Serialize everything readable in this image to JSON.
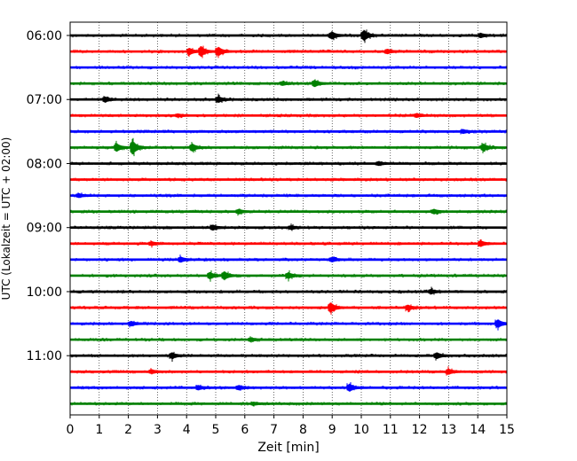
{
  "chart_data": {
    "type": "line",
    "title": "",
    "xlabel": "Zeit  [min]",
    "ylabel": "UTC (Lokalzeit = UTC + 02:00)",
    "xlim": [
      0,
      15
    ],
    "x_ticks": [
      "0",
      "1",
      "2",
      "3",
      "4",
      "5",
      "6",
      "7",
      "8",
      "9",
      "10",
      "11",
      "12",
      "13",
      "14",
      "15"
    ],
    "y_ticks": [
      {
        "label": "06:00",
        "row": 0
      },
      {
        "label": "07:00",
        "row": 4
      },
      {
        "label": "08:00",
        "row": 8
      },
      {
        "label": "09:00",
        "row": 12
      },
      {
        "label": "10:00",
        "row": 16
      },
      {
        "label": "11:00",
        "row": 20
      }
    ],
    "row_interval_min": 15,
    "row_count": 24,
    "colors": [
      "#000000",
      "#ff0000",
      "#0000ff",
      "#008000"
    ],
    "grid": "vertical dotted",
    "legend": "none",
    "events": [
      {
        "row": 0,
        "x": 9.0,
        "amp": 0.9
      },
      {
        "row": 0,
        "x": 10.1,
        "amp": 1.4
      },
      {
        "row": 0,
        "x": 14.1,
        "amp": 0.5
      },
      {
        "row": 1,
        "x": 4.1,
        "amp": 0.8
      },
      {
        "row": 1,
        "x": 4.5,
        "amp": 1.3
      },
      {
        "row": 1,
        "x": 5.1,
        "amp": 1.1
      },
      {
        "row": 1,
        "x": 10.9,
        "amp": 0.5
      },
      {
        "row": 3,
        "x": 8.4,
        "amp": 0.8
      },
      {
        "row": 3,
        "x": 7.3,
        "amp": 0.4
      },
      {
        "row": 4,
        "x": 1.2,
        "amp": 0.6
      },
      {
        "row": 4,
        "x": 5.1,
        "amp": 0.7
      },
      {
        "row": 5,
        "x": 3.7,
        "amp": 0.3
      },
      {
        "row": 5,
        "x": 11.9,
        "amp": 0.4
      },
      {
        "row": 6,
        "x": 13.5,
        "amp": 0.4
      },
      {
        "row": 7,
        "x": 1.6,
        "amp": 1.0
      },
      {
        "row": 7,
        "x": 2.15,
        "amp": 1.9
      },
      {
        "row": 7,
        "x": 4.2,
        "amp": 0.9
      },
      {
        "row": 7,
        "x": 14.2,
        "amp": 0.9
      },
      {
        "row": 8,
        "x": 10.6,
        "amp": 0.4
      },
      {
        "row": 10,
        "x": 0.3,
        "amp": 0.4
      },
      {
        "row": 11,
        "x": 5.8,
        "amp": 0.5
      },
      {
        "row": 11,
        "x": 12.5,
        "amp": 0.5
      },
      {
        "row": 12,
        "x": 4.9,
        "amp": 0.6
      },
      {
        "row": 12,
        "x": 7.6,
        "amp": 0.4
      },
      {
        "row": 13,
        "x": 2.8,
        "amp": 0.4
      },
      {
        "row": 13,
        "x": 14.1,
        "amp": 0.7
      },
      {
        "row": 14,
        "x": 3.8,
        "amp": 0.6
      },
      {
        "row": 14,
        "x": 9.0,
        "amp": 0.5
      },
      {
        "row": 15,
        "x": 4.8,
        "amp": 0.8
      },
      {
        "row": 15,
        "x": 5.3,
        "amp": 1.0
      },
      {
        "row": 15,
        "x": 7.5,
        "amp": 0.7
      },
      {
        "row": 16,
        "x": 12.4,
        "amp": 0.5
      },
      {
        "row": 17,
        "x": 8.95,
        "amp": 1.3
      },
      {
        "row": 17,
        "x": 11.6,
        "amp": 0.6
      },
      {
        "row": 18,
        "x": 2.1,
        "amp": 0.5
      },
      {
        "row": 18,
        "x": 14.7,
        "amp": 1.0
      },
      {
        "row": 19,
        "x": 6.2,
        "amp": 0.4
      },
      {
        "row": 20,
        "x": 3.5,
        "amp": 0.7
      },
      {
        "row": 20,
        "x": 12.6,
        "amp": 0.7
      },
      {
        "row": 21,
        "x": 2.8,
        "amp": 0.4
      },
      {
        "row": 21,
        "x": 13.0,
        "amp": 0.6
      },
      {
        "row": 22,
        "x": 4.4,
        "amp": 0.5
      },
      {
        "row": 22,
        "x": 5.8,
        "amp": 0.5
      },
      {
        "row": 22,
        "x": 9.6,
        "amp": 0.9
      },
      {
        "row": 23,
        "x": 6.3,
        "amp": 0.3
      }
    ]
  }
}
